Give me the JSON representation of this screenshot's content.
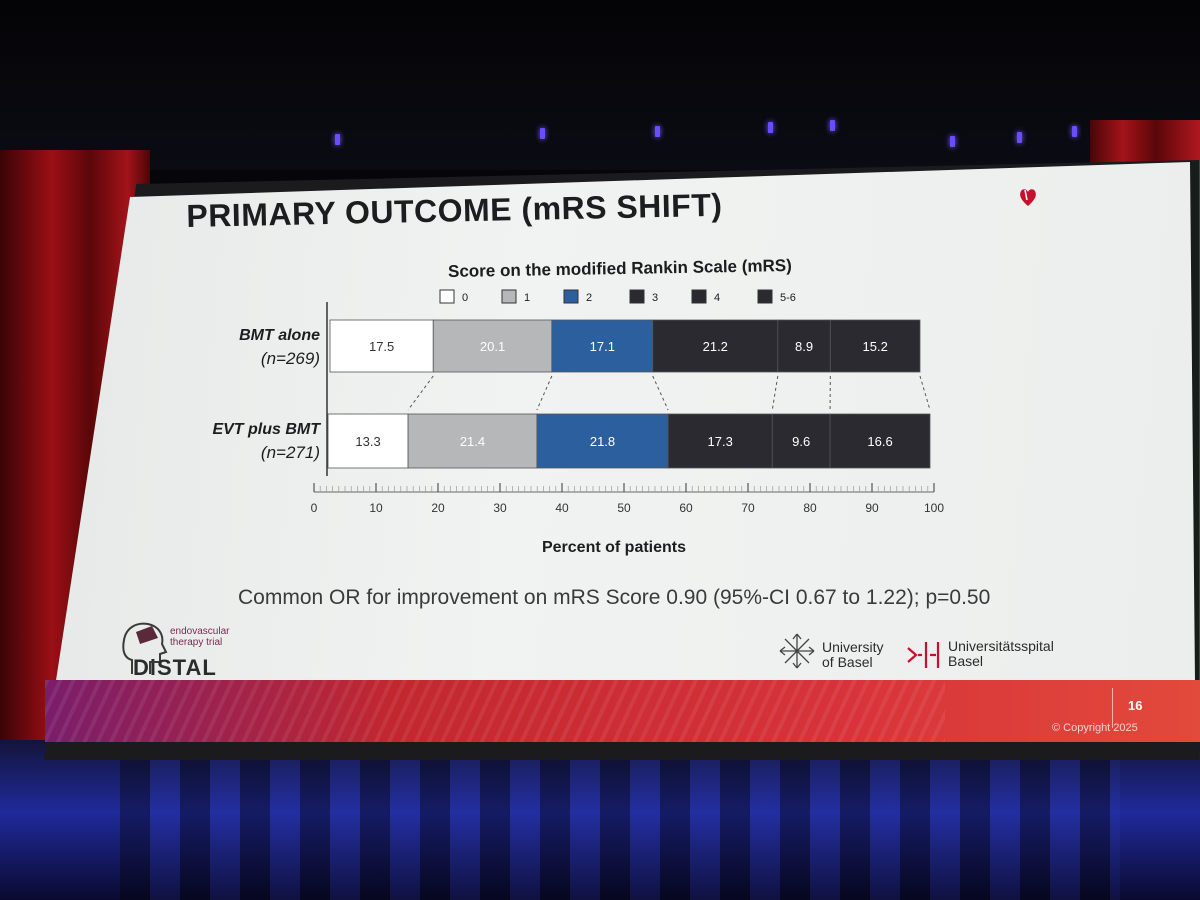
{
  "slide": {
    "title": "PRIMARY OUTCOME (mRS SHIFT)",
    "footnote": "Common OR for improvement on mRS Score 0.90 (95%-CI 0.67 to 1.22); p=0.50",
    "page_number": "16",
    "copyright": "© Copyright 2025",
    "logos": {
      "distal_sub": "endovascular therapy trial",
      "distal_name": "DiSTAL",
      "unibasel_line1": "University",
      "unibasel_line2": "of Basel",
      "usb_line1": "Universitätsspital",
      "usb_line2": "Basel"
    }
  },
  "chart_data": {
    "type": "bar",
    "orientation": "horizontal-stacked",
    "title": "Score on the modified Rankin Scale (mRS)",
    "xlabel": "Percent of patients",
    "xlim": [
      0,
      100
    ],
    "x_ticks": [
      0,
      10,
      20,
      30,
      40,
      50,
      60,
      70,
      80,
      90,
      100
    ],
    "categories": [
      {
        "line1": "BMT alone",
        "line2": "(n=269)"
      },
      {
        "line1": "EVT plus BMT",
        "line2": "(n=271)"
      }
    ],
    "legend_position": "top",
    "series": [
      {
        "name": "0",
        "color": "#ffffff",
        "text_color": "#333333",
        "values": [
          17.5,
          13.3
        ]
      },
      {
        "name": "1",
        "color": "#b5b7b9",
        "text_color": "#ffffff",
        "values": [
          20.1,
          21.4
        ]
      },
      {
        "name": "2",
        "color": "#2b5f9e",
        "text_color": "#ffffff",
        "values": [
          17.1,
          21.8
        ]
      },
      {
        "name": "3",
        "color": "#2a2a30",
        "text_color": "#ffffff",
        "values": [
          21.2,
          17.3
        ]
      },
      {
        "name": "4",
        "color": "#2a2a30",
        "text_color": "#ffffff",
        "values": [
          8.9,
          9.6
        ]
      },
      {
        "name": "5-6",
        "color": "#2a2a30",
        "text_color": "#ffffff",
        "values": [
          15.2,
          16.6
        ]
      }
    ],
    "value_labels": [
      [
        "17.5",
        "20.1",
        "17.1",
        "21.2",
        "8.9",
        "15.2"
      ],
      [
        "13.3",
        "21.4",
        "21.8",
        "17.3",
        "9.6",
        "16.6"
      ]
    ]
  }
}
